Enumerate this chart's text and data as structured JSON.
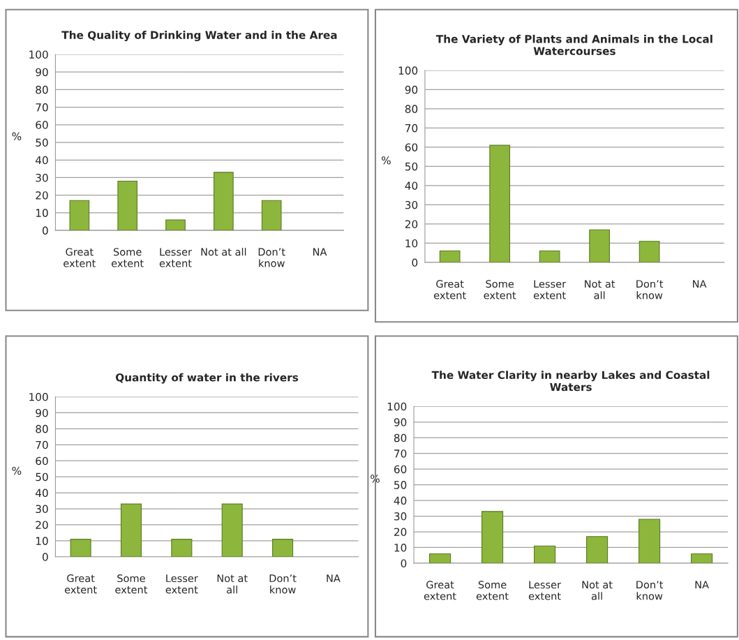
{
  "chart_data": [
    {
      "type": "bar",
      "title": "The Quality of Drinking Water and in the Area",
      "ylabel": "%",
      "categories": [
        "Great\nextent",
        "Some\nextent",
        "Lesser\nextent",
        "Not at all",
        "Don’t\nknow",
        "NA"
      ],
      "values": [
        17,
        28,
        6,
        33,
        17,
        0
      ],
      "color": "#8db63c",
      "ylim": [
        0,
        100
      ],
      "yticks": [
        0,
        10,
        20,
        30,
        40,
        50,
        60,
        70,
        80,
        90,
        100
      ],
      "grid": "y"
    },
    {
      "type": "bar",
      "title": "The Variety of Plants and Animals in the Local\nWatercourses",
      "ylabel": "%",
      "categories": [
        "Great\nextent",
        "Some\nextent",
        "Lesser\nextent",
        "Not at\nall",
        "Don’t\nknow",
        "NA"
      ],
      "values": [
        6,
        61,
        6,
        17,
        11,
        0
      ],
      "color": "#8db63c",
      "ylim": [
        0,
        100
      ],
      "yticks": [
        0,
        10,
        20,
        30,
        40,
        50,
        60,
        70,
        80,
        90,
        100
      ],
      "grid": "y"
    },
    {
      "type": "bar",
      "title": "Quantity of water in the rivers",
      "ylabel": "%",
      "categories": [
        "Great\nextent",
        "Some\nextent",
        "Lesser\nextent",
        "Not at\nall",
        "Don’t\nknow",
        "NA"
      ],
      "values": [
        11,
        33,
        11,
        33,
        11,
        0
      ],
      "color": "#8db63c",
      "ylim": [
        0,
        100
      ],
      "yticks": [
        0,
        10,
        20,
        30,
        40,
        50,
        60,
        70,
        80,
        90,
        100
      ],
      "grid": "y"
    },
    {
      "type": "bar",
      "title": "The Water Clarity in nearby Lakes and Coastal\nWaters",
      "ylabel": "%",
      "categories": [
        "Great\nextent",
        "Some\nextent",
        "Lesser\nextent",
        "Not at\nall",
        "Don’t\nknow",
        "NA"
      ],
      "values": [
        6,
        33,
        11,
        17,
        28,
        6
      ],
      "color": "#8db63c",
      "ylim": [
        0,
        100
      ],
      "yticks": [
        0,
        10,
        20,
        30,
        40,
        50,
        60,
        70,
        80,
        90,
        100
      ],
      "grid": "y"
    }
  ]
}
